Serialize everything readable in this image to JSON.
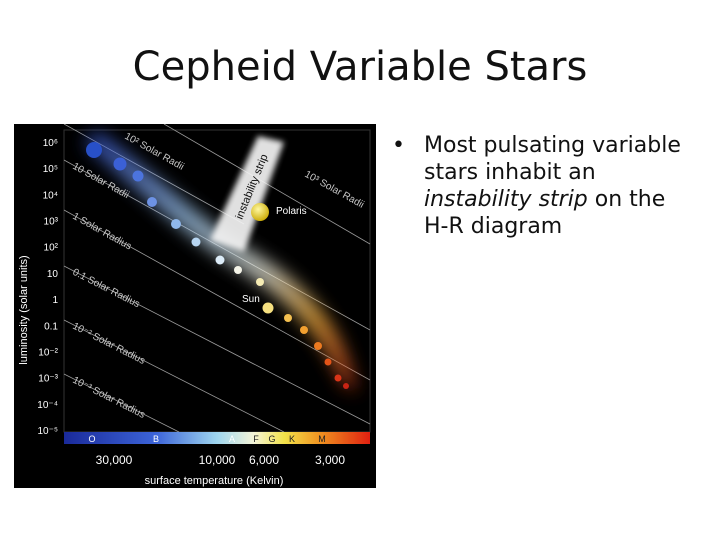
{
  "title": "Cepheid Variable Stars",
  "bullet": {
    "marker": "•",
    "part1": "Most pulsating variable stars inhabit an ",
    "italic1": "instability strip",
    "part2": " on the H-R diagram"
  },
  "hr_diagram": {
    "y_axis_label": "luminosity (solar units)",
    "y_ticks": [
      "10⁶",
      "10⁵",
      "10⁴",
      "10³",
      "10²",
      "10",
      "1",
      "0.1",
      "10⁻²",
      "10⁻³",
      "10⁻⁴",
      "10⁻⁵"
    ],
    "x_axis_label": "surface temperature (Kelvin)",
    "x_ticks": [
      "30,000",
      "10,000",
      "6,000",
      "3,000"
    ],
    "spectral_classes": [
      "O",
      "B",
      "A",
      "F",
      "G",
      "K",
      "M"
    ],
    "radius_lines": [
      {
        "label": "10² Solar Radii"
      },
      {
        "label": "10³ Solar Radii"
      },
      {
        "label": "10 Solar Radii"
      },
      {
        "label": "1 Solar Radius"
      },
      {
        "label": "0.1 Solar Radius"
      },
      {
        "label": "10⁻² Solar Radius"
      },
      {
        "label": "10⁻³ Solar Radius"
      }
    ],
    "strip_label": "instability strip",
    "star_labels": {
      "polaris": "Polaris",
      "sun": "Sun"
    },
    "colors": {
      "background": "#000000",
      "main_sequence_glow": "#e9eef5",
      "strip": "#f4f4f4",
      "polaris": "#e8d21a",
      "sun": "#f6e080"
    }
  }
}
